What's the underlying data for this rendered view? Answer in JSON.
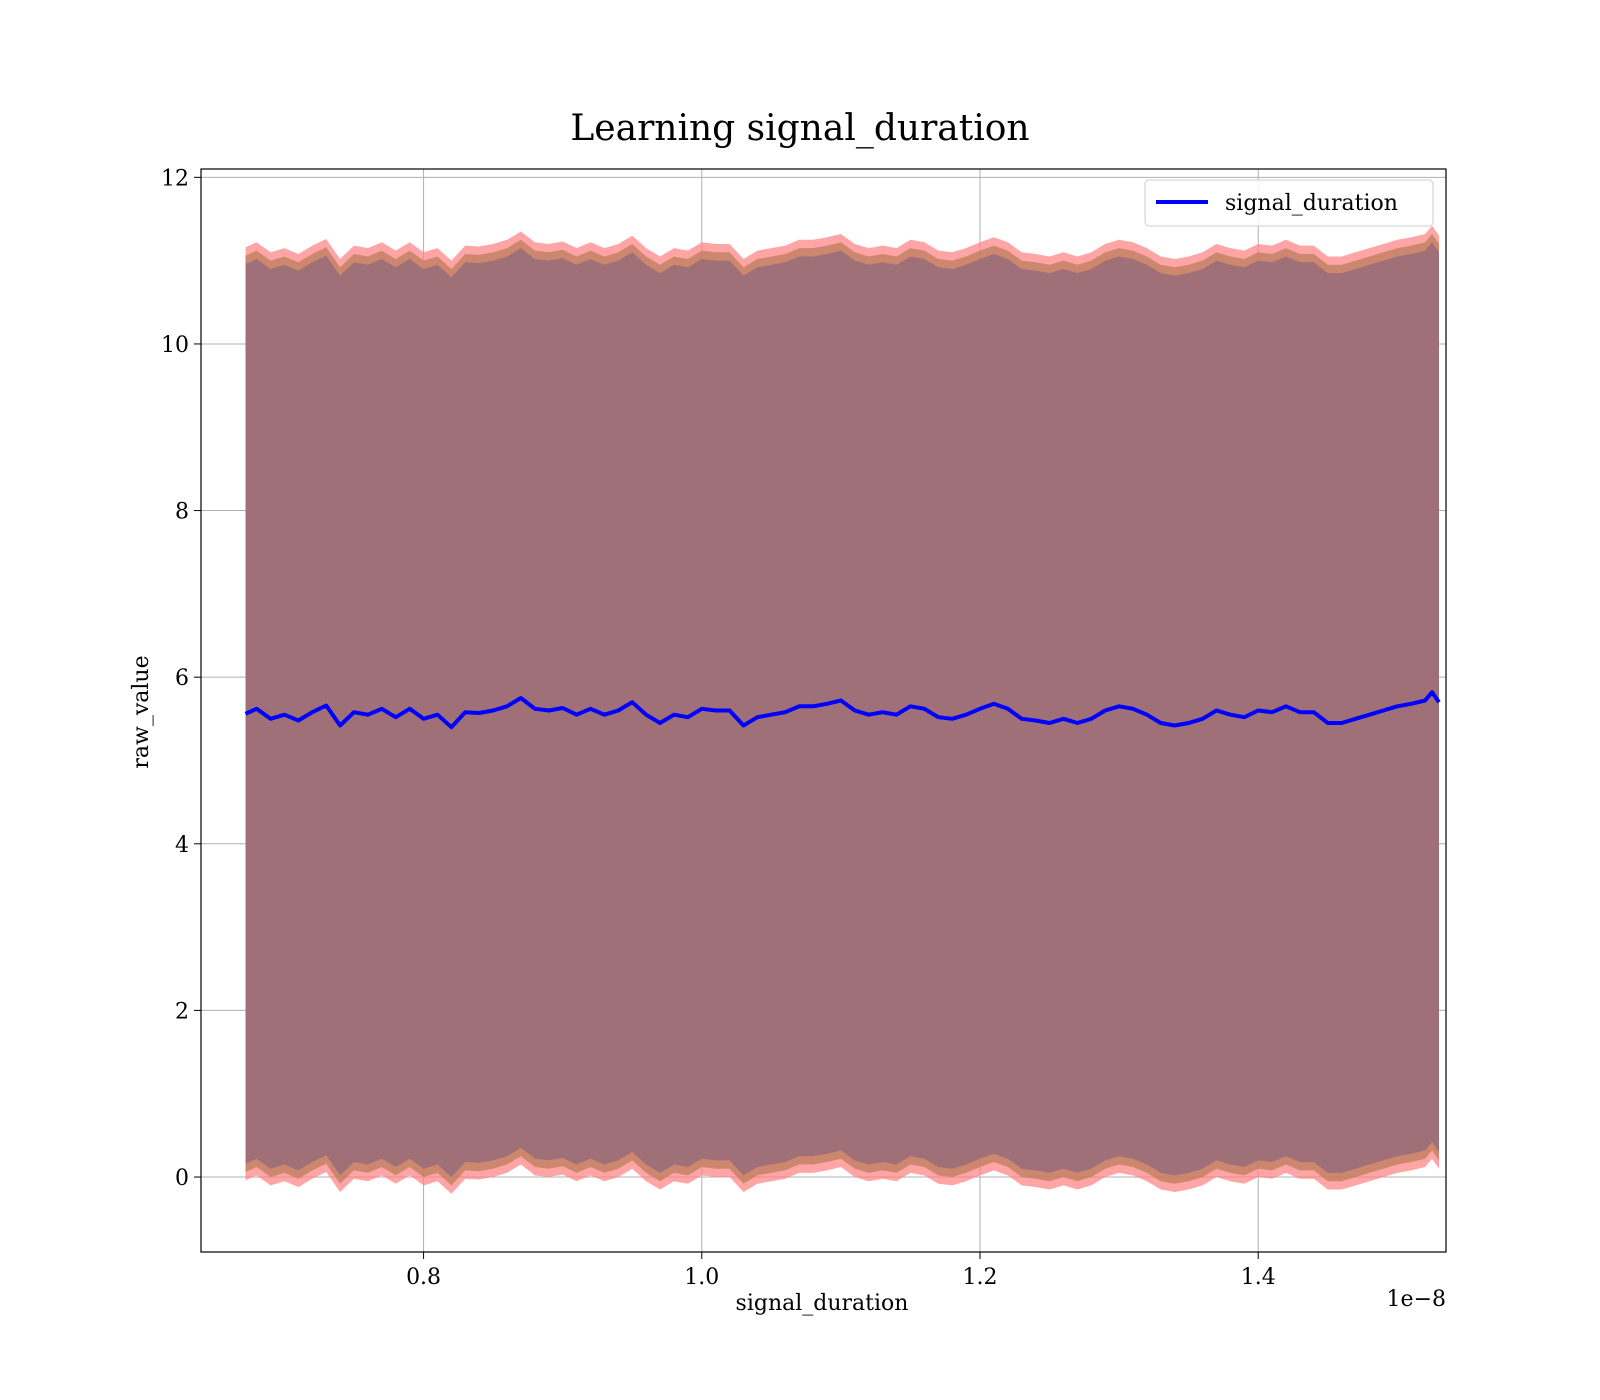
{
  "chart_data": {
    "type": "line",
    "title": "Learning signal_duration",
    "xlabel": "signal_duration",
    "ylabel": "raw_value",
    "x_offset_label": "1e−8",
    "xlim": [
      0.64,
      1.535
    ],
    "ylim": [
      -0.9,
      12.1
    ],
    "x_ticks": [
      0.8,
      1.0,
      1.2,
      1.4
    ],
    "x_tick_labels": [
      "0.8",
      "1.0",
      "1.2",
      "1.4"
    ],
    "y_ticks": [
      0,
      2,
      4,
      6,
      8,
      10,
      12
    ],
    "y_tick_labels": [
      "0",
      "2",
      "4",
      "6",
      "8",
      "10",
      "12"
    ],
    "grid": true,
    "legend_position": "top-right",
    "colors": {
      "mean_line": "#0000ff",
      "outer_band": "#ff7f7f",
      "middle_band": "#c08060",
      "inner_band": "#a07078"
    },
    "band_half_widths": [
      5.6,
      5.5,
      5.4
    ],
    "series": [
      {
        "name": "signal_duration",
        "x": [
          0.672,
          0.68,
          0.69,
          0.7,
          0.71,
          0.72,
          0.73,
          0.74,
          0.75,
          0.76,
          0.77,
          0.78,
          0.79,
          0.8,
          0.81,
          0.82,
          0.83,
          0.84,
          0.85,
          0.86,
          0.87,
          0.88,
          0.89,
          0.9,
          0.91,
          0.92,
          0.93,
          0.94,
          0.95,
          0.96,
          0.97,
          0.98,
          0.99,
          1.0,
          1.01,
          1.02,
          1.03,
          1.04,
          1.05,
          1.06,
          1.07,
          1.08,
          1.09,
          1.1,
          1.11,
          1.12,
          1.13,
          1.14,
          1.15,
          1.16,
          1.17,
          1.18,
          1.19,
          1.2,
          1.21,
          1.22,
          1.23,
          1.24,
          1.25,
          1.26,
          1.27,
          1.28,
          1.29,
          1.3,
          1.31,
          1.32,
          1.33,
          1.34,
          1.35,
          1.36,
          1.37,
          1.38,
          1.39,
          1.4,
          1.41,
          1.42,
          1.43,
          1.44,
          1.45,
          1.46,
          1.47,
          1.48,
          1.49,
          1.5,
          1.51,
          1.52,
          1.525,
          1.53
        ],
        "y": [
          5.56,
          5.62,
          5.5,
          5.55,
          5.48,
          5.58,
          5.66,
          5.42,
          5.58,
          5.55,
          5.62,
          5.52,
          5.62,
          5.5,
          5.55,
          5.4,
          5.58,
          5.57,
          5.6,
          5.65,
          5.75,
          5.62,
          5.6,
          5.63,
          5.55,
          5.62,
          5.55,
          5.6,
          5.7,
          5.55,
          5.45,
          5.55,
          5.52,
          5.62,
          5.6,
          5.6,
          5.42,
          5.52,
          5.55,
          5.58,
          5.65,
          5.65,
          5.68,
          5.72,
          5.6,
          5.55,
          5.58,
          5.55,
          5.65,
          5.62,
          5.52,
          5.5,
          5.55,
          5.62,
          5.68,
          5.62,
          5.5,
          5.48,
          5.45,
          5.5,
          5.45,
          5.5,
          5.6,
          5.65,
          5.62,
          5.55,
          5.45,
          5.42,
          5.45,
          5.5,
          5.6,
          5.55,
          5.52,
          5.6,
          5.58,
          5.65,
          5.58,
          5.58,
          5.45,
          5.45,
          5.5,
          5.55,
          5.6,
          5.65,
          5.68,
          5.72,
          5.82,
          5.7
        ]
      }
    ]
  }
}
